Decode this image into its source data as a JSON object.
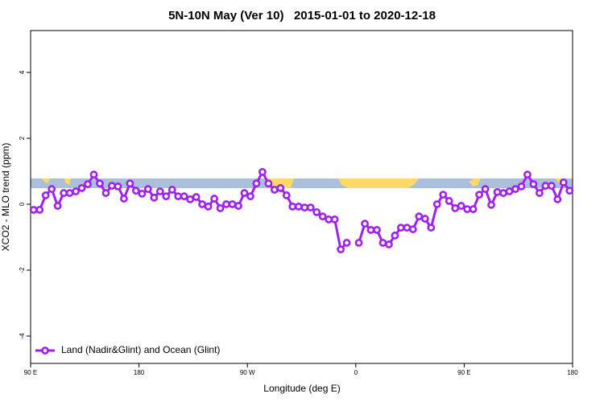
{
  "chart_data": {
    "type": "line",
    "title": "5N-10N May (Ver 10)   2015-01-01 to 2020-12-18",
    "xlabel": "Longitude (deg E)",
    "ylabel": "XCO2 - MLO trend (ppm)",
    "xlim": [
      90,
      540
    ],
    "ylim": [
      -4.83,
      5.27
    ],
    "xticks": [
      {
        "value": 90,
        "label": "90 E"
      },
      180,
      {
        "value": 270,
        "label": "90 W"
      },
      {
        "value": 360,
        "label": "0"
      },
      {
        "value": 450,
        "label": "90 E"
      },
      {
        "value": 540,
        "label": "180"
      }
    ],
    "yticks": [
      -4,
      -2,
      0,
      2,
      4
    ],
    "legend": "bottom-left",
    "x": [
      92.5,
      97.5,
      102.5,
      107.5,
      112.5,
      117.5,
      122.5,
      127.5,
      132.5,
      137.5,
      142.5,
      147.5,
      152.5,
      157.5,
      162.5,
      167.5,
      172.5,
      177.5,
      182.5,
      187.5,
      192.5,
      197.5,
      202.5,
      207.5,
      212.5,
      217.5,
      222.5,
      227.5,
      232.5,
      237.5,
      242.5,
      247.5,
      252.5,
      257.5,
      262.5,
      267.5,
      272.5,
      277.5,
      282.5,
      287.5,
      292.5,
      297.5,
      302.5,
      307.5,
      312.5,
      317.5,
      322.5,
      327.5,
      332.5,
      337.5,
      342.5,
      347.5,
      352.5,
      357.5,
      362.5,
      367.5,
      372.5,
      377.5,
      382.5,
      387.5,
      392.5,
      397.5,
      402.5,
      407.5,
      412.5,
      417.5,
      422.5,
      427.5,
      432.5,
      437.5,
      442.5,
      447.5,
      452.5,
      457.5,
      462.5,
      467.5,
      472.5,
      477.5,
      482.5,
      487.5,
      492.5,
      497.5,
      502.5,
      507.5,
      512.5,
      517.5,
      522.5,
      527.5,
      532.5,
      537.5
    ],
    "series": [
      {
        "name": "Land (Nadir&Glint) and Ocean (Glint)",
        "color": "#a020f0",
        "values": [
          -0.17,
          -0.17,
          0.27,
          0.46,
          -0.05,
          0.34,
          0.34,
          0.39,
          0.49,
          0.61,
          0.9,
          0.63,
          0.34,
          0.56,
          0.54,
          0.17,
          0.63,
          0.41,
          0.32,
          0.46,
          0.2,
          0.39,
          0.24,
          0.44,
          0.24,
          0.24,
          0.15,
          0.22,
          0,
          -0.07,
          0.17,
          -0.12,
          0,
          0,
          -0.05,
          0.34,
          0.24,
          0.63,
          0.98,
          0.63,
          0.44,
          0.49,
          0.27,
          -0.07,
          -0.07,
          -0.1,
          -0.1,
          -0.24,
          -0.37,
          -0.46,
          -0.46,
          -1.37,
          -1.17,
          null,
          -1.17,
          -0.59,
          -0.78,
          -0.78,
          -1.17,
          -1.22,
          -0.95,
          -0.71,
          -0.71,
          -0.76,
          -0.37,
          -0.44,
          -0.71,
          0,
          0.29,
          0.1,
          -0.12,
          -0.05,
          -0.15,
          -0.15,
          0.29,
          0.46,
          -0.02,
          0.37,
          0.34,
          0.39,
          0.46,
          0.54,
          0.9,
          0.61,
          0.34,
          0.56,
          0.56,
          0.15,
          0.66,
          0.41
        ]
      }
    ]
  }
}
